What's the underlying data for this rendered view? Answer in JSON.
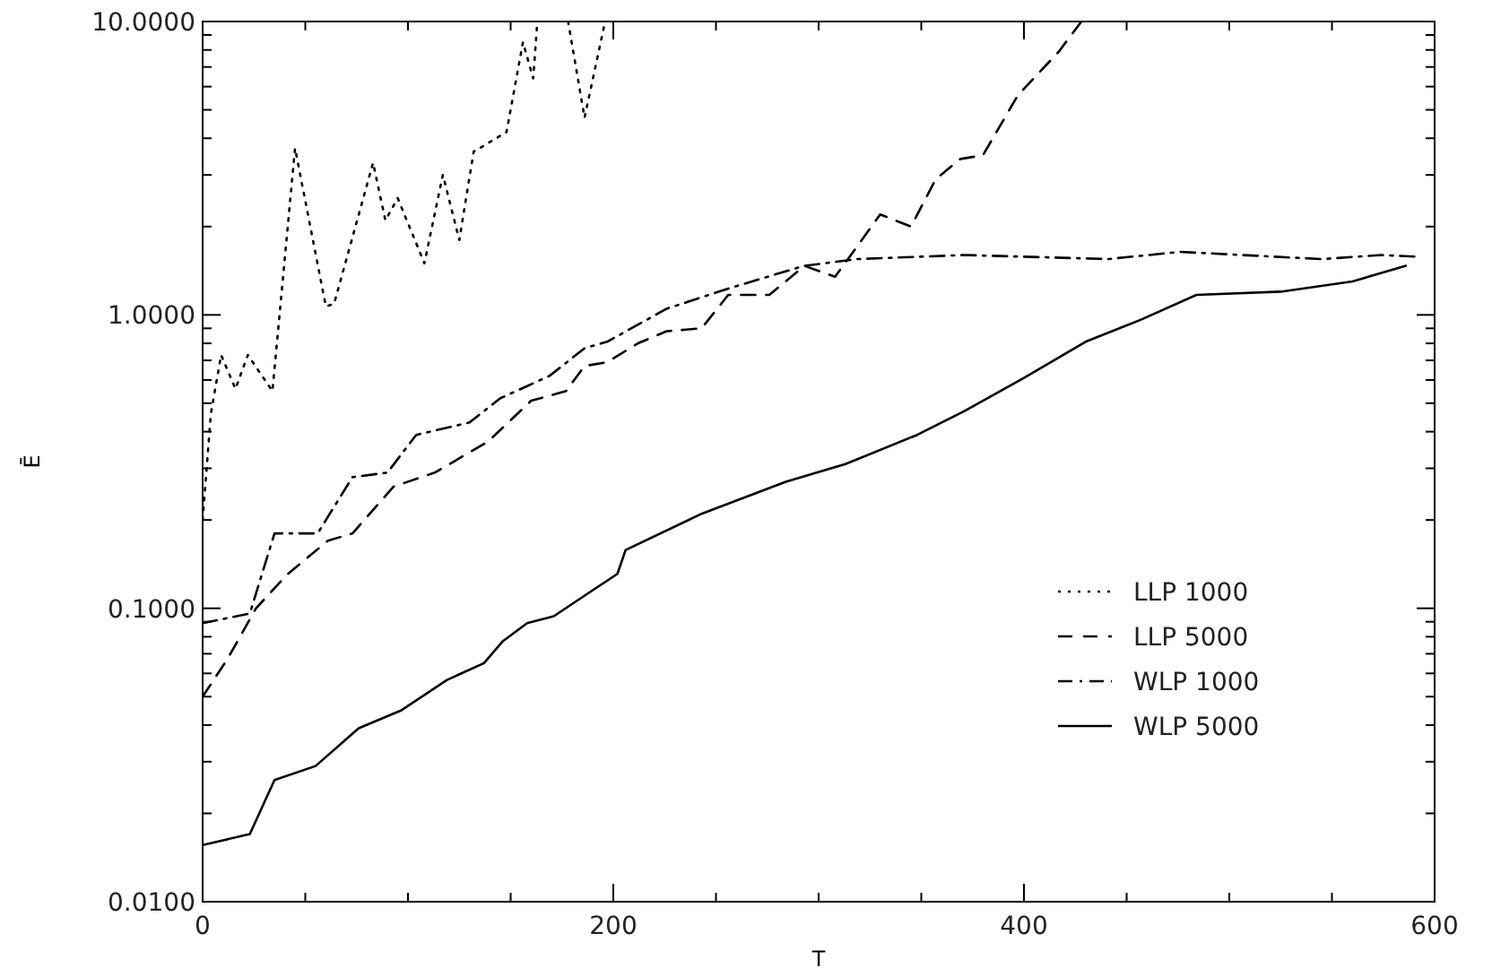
{
  "chart_data": {
    "type": "line",
    "xlabel": "T",
    "ylabel": "Ē",
    "log": "y",
    "xlim": [
      0,
      600
    ],
    "ylim": [
      0.01,
      10
    ],
    "xticks": [
      0,
      {
        "value": 50,
        "label": null
      },
      {
        "value": 100,
        "label": null
      },
      {
        "value": 150,
        "label": null
      },
      200,
      {
        "value": 250,
        "label": null
      },
      {
        "value": 300,
        "label": null
      },
      {
        "value": 350,
        "label": null
      },
      400,
      {
        "value": 450,
        "label": null
      },
      {
        "value": 500,
        "label": null
      },
      {
        "value": 550,
        "label": null
      },
      600
    ],
    "yticks": [
      {
        "value": 0.01,
        "label": "0.0100"
      },
      {
        "value": 0.02,
        "label": null
      },
      {
        "value": 0.03,
        "label": null
      },
      {
        "value": 0.04,
        "label": null
      },
      {
        "value": 0.05,
        "label": null
      },
      {
        "value": 0.06,
        "label": null
      },
      {
        "value": 0.07,
        "label": null
      },
      {
        "value": 0.08,
        "label": null
      },
      {
        "value": 0.09,
        "label": null
      },
      {
        "value": 0.1,
        "label": "0.1000"
      },
      {
        "value": 0.2,
        "label": null
      },
      {
        "value": 0.3,
        "label": null
      },
      {
        "value": 0.4,
        "label": null
      },
      {
        "value": 0.5,
        "label": null
      },
      {
        "value": 0.6,
        "label": null
      },
      {
        "value": 0.7,
        "label": null
      },
      {
        "value": 0.8,
        "label": null
      },
      {
        "value": 0.9,
        "label": null
      },
      {
        "value": 1,
        "label": "1.0000"
      },
      {
        "value": 2,
        "label": null
      },
      {
        "value": 3,
        "label": null
      },
      {
        "value": 4,
        "label": null
      },
      {
        "value": 5,
        "label": null
      },
      {
        "value": 6,
        "label": null
      },
      {
        "value": 7,
        "label": null
      },
      {
        "value": 8,
        "label": null
      },
      {
        "value": 9,
        "label": null
      },
      {
        "value": 10,
        "label": "10.0000"
      }
    ],
    "grid": false,
    "legend": "right",
    "series": [
      {
        "name": "LLP 1000",
        "color": "#000000",
        "line_style": "dotted",
        "x": [
          0,
          4,
          9,
          16,
          22,
          34,
          45,
          60,
          64,
          83,
          89,
          95,
          108,
          117,
          125,
          132,
          148,
          156,
          161,
          163,
          170,
          178,
          186,
          196
        ],
        "values": [
          0.2,
          0.46,
          0.73,
          0.56,
          0.73,
          0.55,
          3.7,
          1.07,
          1.09,
          3.3,
          2.1,
          2.5,
          1.5,
          3.0,
          1.8,
          3.6,
          4.2,
          8.5,
          6.4,
          10,
          null,
          10,
          4.7,
          10
        ]
      },
      {
        "name": "LLP 5000",
        "color": "#000000",
        "line_style": "dashed",
        "x": [
          0,
          12,
          26,
          41,
          61,
          73,
          93,
          113,
          139,
          160,
          177,
          186,
          197,
          212,
          226,
          243,
          256,
          276,
          293,
          308,
          319,
          330,
          345,
          357,
          369,
          380,
          397,
          417,
          428
        ],
        "values": [
          0.05,
          0.067,
          0.1,
          0.13,
          0.17,
          0.18,
          0.26,
          0.29,
          0.37,
          0.51,
          0.55,
          0.67,
          0.69,
          0.8,
          0.88,
          0.9,
          1.17,
          1.17,
          1.47,
          1.35,
          1.72,
          2.2,
          2.0,
          2.9,
          3.4,
          3.5,
          5.6,
          7.9,
          10
        ]
      },
      {
        "name": "WLP 1000",
        "color": "#000000",
        "line_style": "dashdot",
        "x": [
          0,
          23,
          35,
          56,
          73,
          90,
          104,
          130,
          145,
          169,
          186,
          197,
          226,
          256,
          293,
          319,
          371,
          441,
          476,
          545,
          574,
          591
        ],
        "values": [
          0.089,
          0.096,
          0.18,
          0.18,
          0.28,
          0.29,
          0.39,
          0.43,
          0.52,
          0.62,
          0.77,
          0.81,
          1.05,
          1.23,
          1.47,
          1.55,
          1.6,
          1.55,
          1.64,
          1.55,
          1.6,
          1.58
        ]
      },
      {
        "name": "WLP 5000",
        "color": "#000000",
        "line_style": "solid",
        "x": [
          0,
          23,
          35,
          55,
          76,
          97,
          119,
          137,
          146,
          158,
          171,
          189,
          202,
          206,
          243,
          284,
          313,
          348,
          371,
          400,
          430,
          458,
          484,
          525,
          560,
          586
        ],
        "values": [
          0.0156,
          0.017,
          0.026,
          0.029,
          0.039,
          0.045,
          0.057,
          0.065,
          0.077,
          0.089,
          0.094,
          0.114,
          0.131,
          0.158,
          0.21,
          0.27,
          0.31,
          0.39,
          0.47,
          0.61,
          0.81,
          0.97,
          1.17,
          1.2,
          1.3,
          1.47
        ]
      }
    ]
  }
}
